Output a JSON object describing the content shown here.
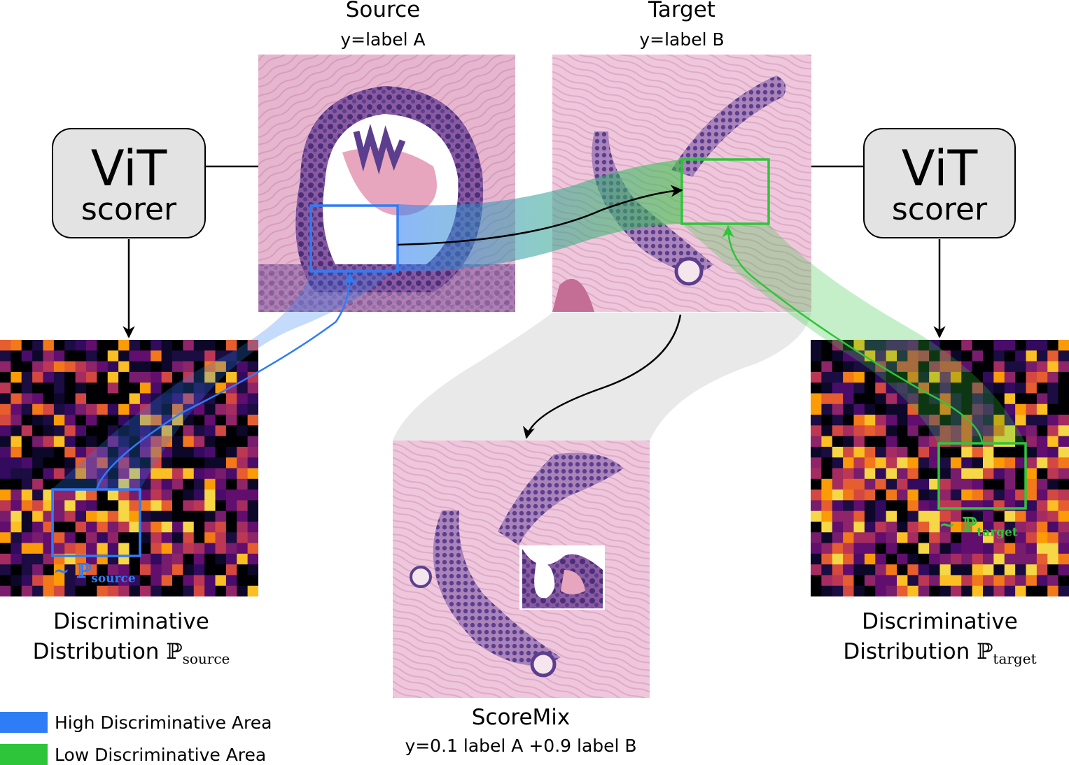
{
  "source": {
    "title": "Source",
    "label": "y=label A"
  },
  "target": {
    "title": "Target",
    "label": "y=label B"
  },
  "scorer_left": {
    "line1": "ViT",
    "line2": "scorer"
  },
  "scorer_right": {
    "line1": "ViT",
    "line2": "scorer"
  },
  "dist_left": {
    "line1": "Discriminative",
    "line2": "Distribution",
    "symbol": "ℙ",
    "subscript": "source",
    "tag_tilde": "~ ℙ",
    "tag_sub": "source"
  },
  "dist_right": {
    "line1": "Discriminative",
    "line2": "Distribution",
    "symbol": "ℙ",
    "subscript": "target",
    "tag_tilde": "~ ℙ",
    "tag_sub": "target"
  },
  "mix": {
    "title": "ScoreMix",
    "label": "y=0.1 label A +0.9 label B"
  },
  "legend": [
    {
      "label": "High Discriminative Area",
      "color": "#2f7df6"
    },
    {
      "label": "Low Discriminative Area",
      "color": "#2fc53a"
    }
  ],
  "colors": {
    "blue": "#2f7df6",
    "green": "#2fc53a",
    "tissue": "#e8bcd6",
    "nuclei": "#5b3f8e"
  }
}
